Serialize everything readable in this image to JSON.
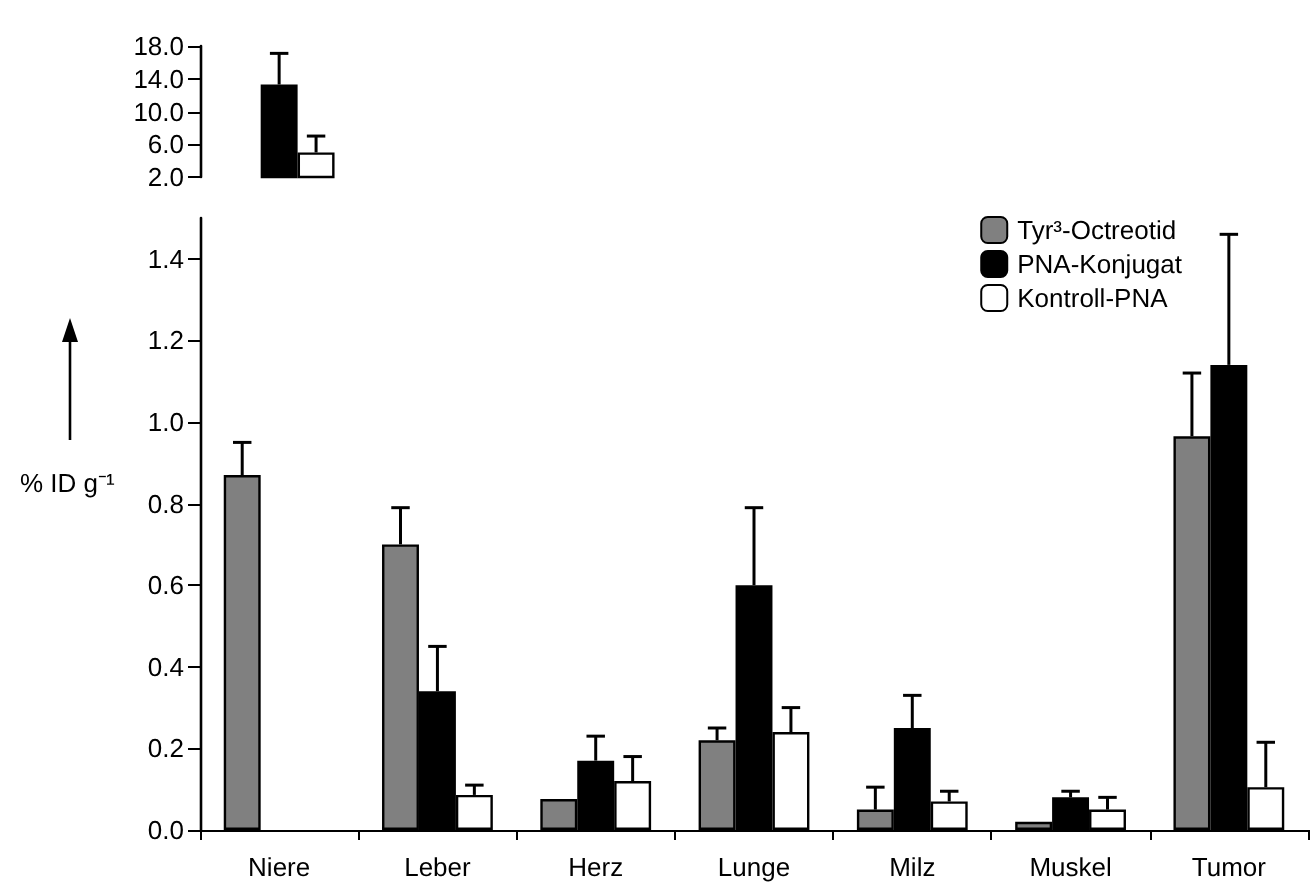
{
  "chart_data": [
    {
      "type": "bar",
      "categories": [
        null
      ],
      "series": [
        {
          "color": "#000000",
          "values": [
            13.3
          ],
          "errors": [
            [
              13.3,
              17.1
            ]
          ]
        },
        {
          "color": "#ffffff",
          "values": [
            5.0
          ],
          "errors": [
            [
              5.0,
              7.0
            ]
          ]
        }
      ],
      "ylim": [
        2,
        18
      ],
      "yticks": [
        {
          "value": 2,
          "label": "2.0"
        },
        {
          "value": 6,
          "label": "6.0"
        },
        {
          "value": 10,
          "label": "10.0"
        },
        {
          "value": 14,
          "label": "14.0"
        },
        {
          "value": 18,
          "label": "18.0"
        }
      ],
      "tick_labels": "y",
      "grid": false
    },
    {
      "type": "bar",
      "categories": [
        "Niere",
        "Leber",
        "Herz",
        "Lunge",
        "Milz",
        "Muskel",
        "Tumor"
      ],
      "ylabel": "% ID g⁻¹",
      "series": [
        {
          "name": "Tyr³-Octreotid",
          "color": "#808080",
          "values": [
            0.87,
            0.7,
            0.076,
            0.22,
            0.05,
            0.02,
            0.965
          ],
          "errors": [
            [
              0.87,
              0.95
            ],
            [
              0.7,
              0.79
            ],
            null,
            [
              0.22,
              0.25
            ],
            [
              0.05,
              0.105
            ],
            null,
            [
              0.965,
              1.12
            ]
          ]
        },
        {
          "name": "PNA-Konjugat",
          "color": "#000000",
          "values": [
            null,
            0.34,
            0.17,
            0.6,
            0.25,
            0.08,
            1.14
          ],
          "errors": [
            null,
            [
              0.34,
              0.45
            ],
            [
              0.17,
              0.23
            ],
            [
              0.6,
              0.79
            ],
            [
              0.25,
              0.33
            ],
            [
              0.08,
              0.095
            ],
            [
              1.14,
              1.46
            ]
          ]
        },
        {
          "name": "Kontroll-PNA",
          "color": "#ffffff",
          "values": [
            null,
            0.086,
            0.12,
            0.24,
            0.07,
            0.05,
            0.105
          ],
          "errors": [
            null,
            [
              0.086,
              0.11
            ],
            [
              0.12,
              0.18
            ],
            [
              0.24,
              0.3
            ],
            [
              0.07,
              0.095
            ],
            [
              0.05,
              0.08
            ],
            [
              0.105,
              0.215
            ]
          ]
        }
      ],
      "ylim": [
        0,
        1.5
      ],
      "yticks": [
        {
          "value": 0,
          "label": "0.0"
        },
        {
          "value": 0.2,
          "label": "0.2"
        },
        {
          "value": 0.4,
          "label": "0.4"
        },
        {
          "value": 0.6,
          "label": "0.6"
        },
        {
          "value": 0.8,
          "label": "0.8"
        },
        {
          "value": 1.0,
          "label": "1.0"
        },
        {
          "value": 1.2,
          "label": "1.2"
        },
        {
          "value": 1.4,
          "label": "1.4"
        }
      ],
      "legend": "top right",
      "grid": false
    }
  ]
}
